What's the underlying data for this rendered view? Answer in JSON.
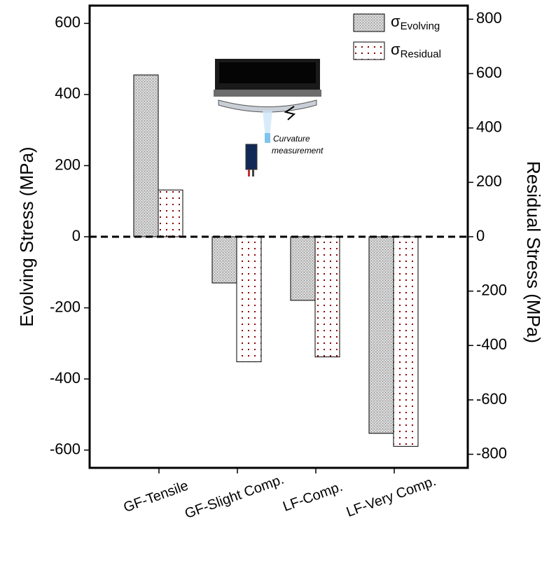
{
  "chart_data": {
    "type": "bar",
    "y_label": "Evolving Stress (MPa)",
    "y2_label": "Residual Stress (MPa)",
    "categories": [
      "GF-Tensile",
      "GF-Slight Comp.",
      "LF-Comp.",
      "LF-Very Comp."
    ],
    "series": [
      {
        "name": "σEvolving",
        "color": "#c4c4c4",
        "values": [
          455,
          -130,
          -179,
          -553
        ]
      },
      {
        "name": "σResidual",
        "color": "#8b0000",
        "axis": "y2",
        "values": [
          172,
          -460,
          -442,
          -771
        ]
      }
    ],
    "ylim": [
      -650,
      650
    ],
    "yticks": [
      -600,
      -400,
      -200,
      0,
      200,
      400,
      600
    ],
    "y2lim": [
      -850,
      850
    ],
    "y2ticks": [
      -800,
      -600,
      -400,
      -200,
      0,
      200,
      400,
      600,
      800
    ],
    "zero_line": true,
    "annotation": [
      "Curvature",
      "measurement"
    ]
  }
}
